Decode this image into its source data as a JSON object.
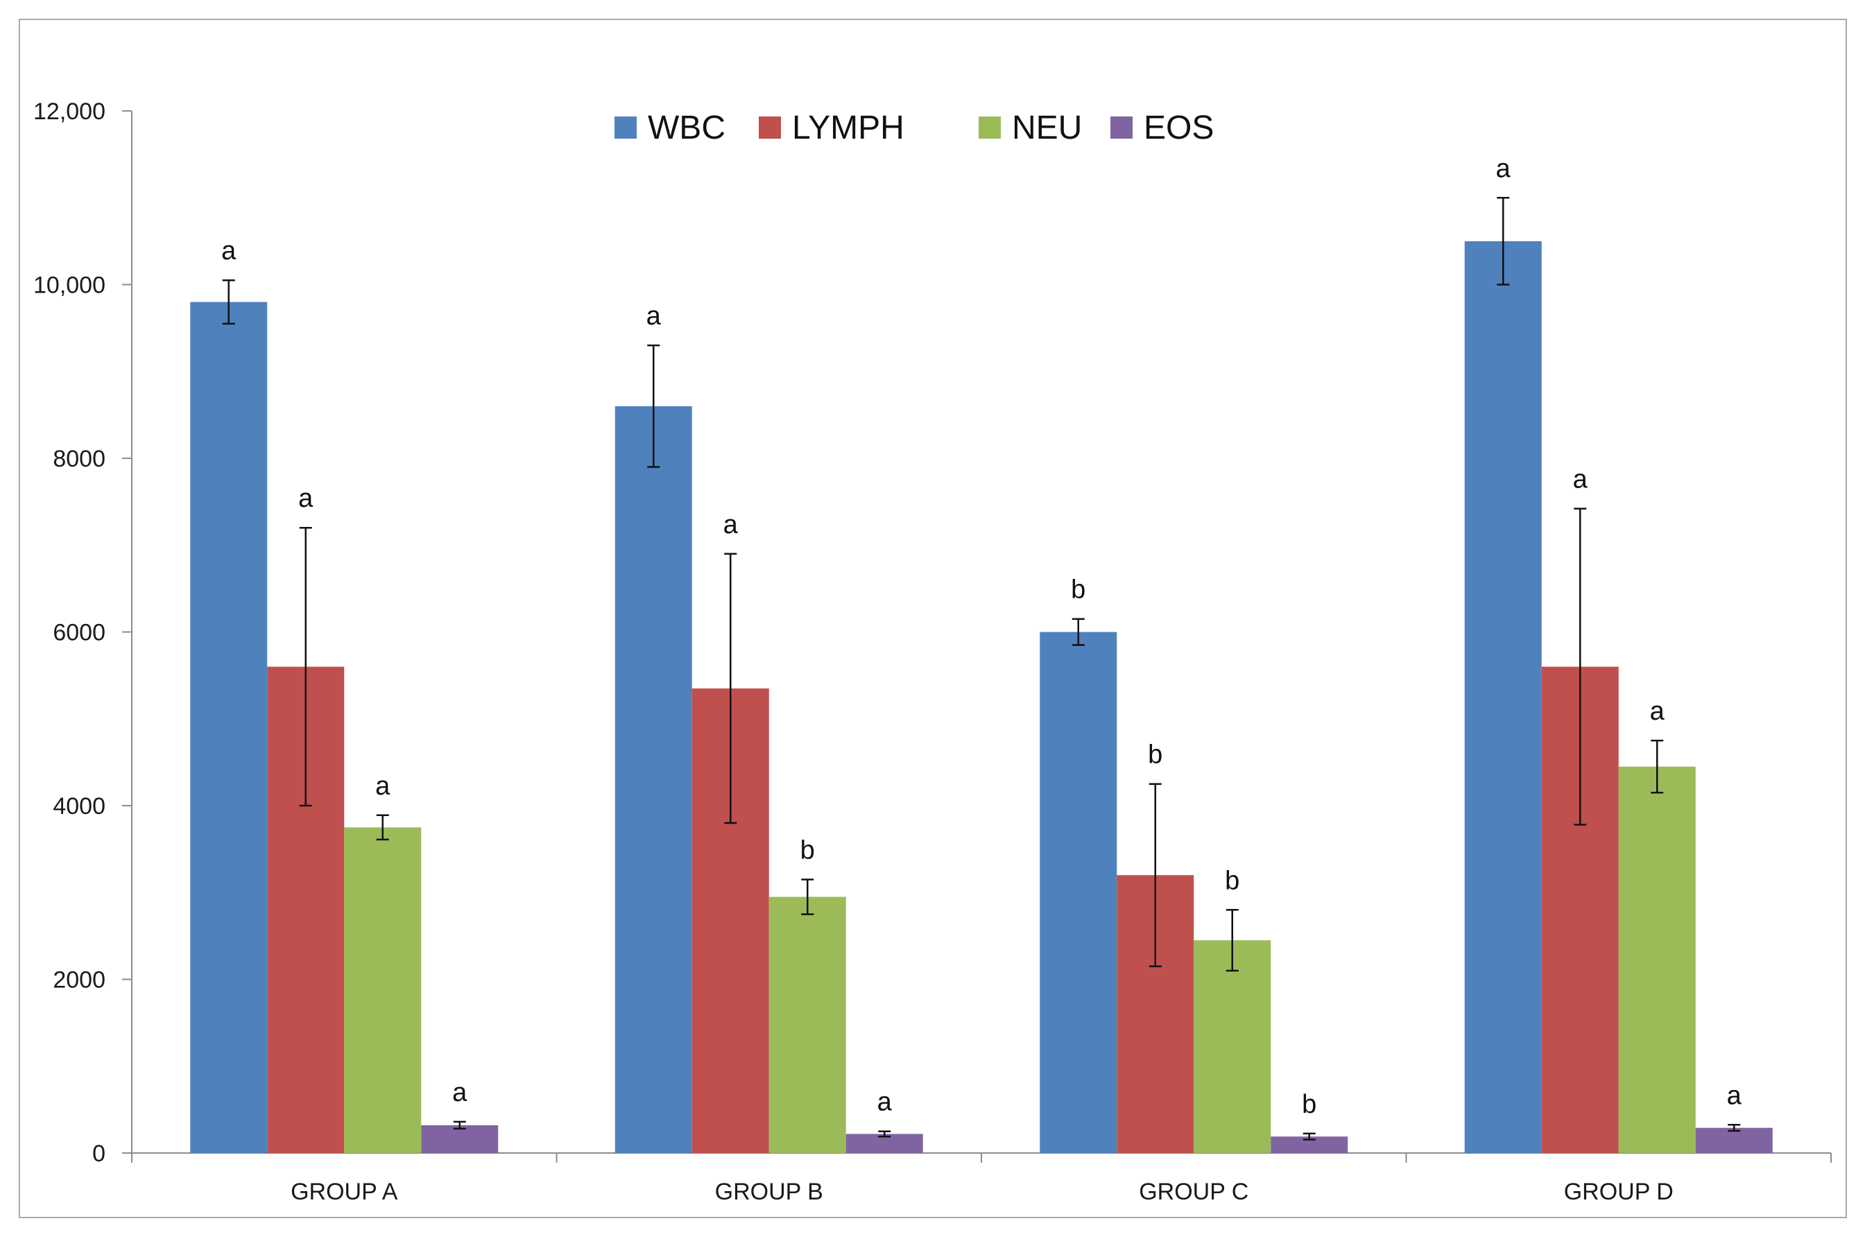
{
  "chart_data": {
    "type": "bar",
    "title": "",
    "xlabel": "",
    "ylabel": "",
    "ylim": [
      0,
      12000
    ],
    "yticks": [
      {
        "value": 0,
        "label": "0"
      },
      {
        "value": 2000,
        "label": "2000"
      },
      {
        "value": 4000,
        "label": "4000"
      },
      {
        "value": 6000,
        "label": "6000"
      },
      {
        "value": 8000,
        "label": "8000"
      },
      {
        "value": 10000,
        "label": "10,000"
      },
      {
        "value": 12000,
        "label": "12,000"
      }
    ],
    "grid": false,
    "legend_position": "top-center",
    "categories": [
      "GROUP A",
      "GROUP B",
      "GROUP C",
      "GROUP D"
    ],
    "series": [
      {
        "name": "WBC",
        "color": "#4f81bd",
        "values": [
          9800,
          8600,
          6000,
          10500
        ],
        "errors": [
          250,
          700,
          150,
          500
        ],
        "significance": [
          "a",
          "a",
          "b",
          "a"
        ]
      },
      {
        "name": "LYMPH",
        "color": "#c0504d",
        "values": [
          5600,
          5350,
          3200,
          5600
        ],
        "errors": [
          1600,
          1550,
          1050,
          1820
        ],
        "significance": [
          "a",
          "a",
          "b",
          "a"
        ]
      },
      {
        "name": "NEU",
        "color": "#9bbb59",
        "values": [
          3750,
          2950,
          2450,
          4450
        ],
        "errors": [
          140,
          200,
          350,
          300
        ],
        "significance": [
          "a",
          "b",
          "b",
          "a"
        ]
      },
      {
        "name": "EOS",
        "color": "#8064a2",
        "values": [
          320,
          220,
          190,
          290
        ],
        "errors": [
          40,
          30,
          35,
          35
        ],
        "significance": [
          "a",
          "a",
          "b",
          "a"
        ]
      }
    ]
  }
}
